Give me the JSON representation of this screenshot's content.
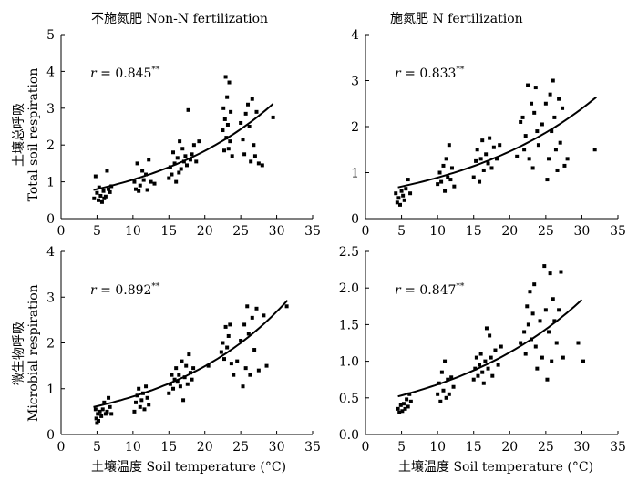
{
  "figure": {
    "col_titles": [
      "不施氮肥 Non-N fertilization",
      "施氮肥 N fertilization"
    ],
    "row_titles": [
      {
        "cn": "土壤总呼吸",
        "en": "Total soil respiration"
      },
      {
        "cn": "微生物呼吸",
        "en": "Microbial respiration"
      }
    ],
    "xlabel": "土壤温度 Soil temperature (°C)"
  },
  "chart_data": [
    {
      "type": "scatter",
      "title": "不施氮肥 Non-N fertilization",
      "annotation": {
        "r": "0.845",
        "sig": "**"
      },
      "xlim": [
        0,
        35
      ],
      "ylim": [
        0,
        5
      ],
      "xticks": [
        0,
        5,
        10,
        15,
        20,
        25,
        30,
        35
      ],
      "yticks": [
        0,
        1,
        2,
        3,
        4,
        5
      ],
      "points": [
        [
          4.6,
          0.55
        ],
        [
          4.8,
          1.15
        ],
        [
          5.0,
          0.7
        ],
        [
          5.2,
          0.5
        ],
        [
          5.3,
          0.85
        ],
        [
          5.5,
          0.62
        ],
        [
          5.7,
          0.45
        ],
        [
          5.9,
          0.75
        ],
        [
          6.0,
          0.55
        ],
        [
          6.2,
          0.6
        ],
        [
          6.4,
          1.3
        ],
        [
          6.6,
          0.8
        ],
        [
          6.8,
          0.72
        ],
        [
          7.0,
          0.88
        ],
        [
          10.2,
          1.0
        ],
        [
          10.4,
          0.8
        ],
        [
          10.6,
          1.5
        ],
        [
          10.8,
          0.75
        ],
        [
          11.0,
          0.9
        ],
        [
          11.3,
          1.3
        ],
        [
          11.5,
          1.05
        ],
        [
          11.8,
          1.2
        ],
        [
          12.0,
          0.78
        ],
        [
          12.2,
          1.6
        ],
        [
          12.5,
          1.0
        ],
        [
          13.0,
          0.95
        ],
        [
          15.0,
          1.1
        ],
        [
          15.2,
          1.4
        ],
        [
          15.4,
          1.2
        ],
        [
          15.6,
          1.8
        ],
        [
          15.8,
          1.5
        ],
        [
          16.0,
          1.0
        ],
        [
          16.2,
          1.65
        ],
        [
          16.4,
          1.25
        ],
        [
          16.5,
          2.1
        ],
        [
          16.7,
          1.35
        ],
        [
          16.9,
          1.9
        ],
        [
          17.1,
          1.55
        ],
        [
          17.3,
          1.7
        ],
        [
          17.5,
          1.45
        ],
        [
          17.7,
          2.95
        ],
        [
          18.0,
          1.6
        ],
        [
          18.2,
          1.75
        ],
        [
          18.5,
          2.0
        ],
        [
          18.8,
          1.55
        ],
        [
          19.2,
          2.1
        ],
        [
          22.5,
          2.4
        ],
        [
          22.6,
          3.0
        ],
        [
          22.7,
          1.85
        ],
        [
          22.8,
          2.7
        ],
        [
          22.9,
          3.85
        ],
        [
          23.0,
          2.2
        ],
        [
          23.1,
          3.3
        ],
        [
          23.2,
          2.55
        ],
        [
          23.3,
          1.9
        ],
        [
          23.4,
          3.7
        ],
        [
          23.5,
          2.1
        ],
        [
          23.6,
          2.9
        ],
        [
          23.8,
          1.7
        ],
        [
          25.0,
          2.6
        ],
        [
          25.3,
          2.15
        ],
        [
          25.5,
          1.75
        ],
        [
          25.7,
          2.85
        ],
        [
          26.0,
          3.1
        ],
        [
          26.2,
          2.5
        ],
        [
          26.4,
          1.55
        ],
        [
          26.6,
          3.25
        ],
        [
          26.8,
          2.0
        ],
        [
          27.0,
          1.7
        ],
        [
          27.2,
          2.9
        ],
        [
          27.5,
          1.5
        ],
        [
          28.0,
          1.45
        ],
        [
          29.5,
          2.75
        ]
      ],
      "fit_curve": {
        "x": [
          4.5,
          29.5
        ],
        "y_start": 0.78,
        "y_end": 3.12
      }
    },
    {
      "type": "scatter",
      "title": "施氮肥 N fertilization",
      "annotation": {
        "r": "0.833",
        "sig": "**"
      },
      "xlim": [
        0,
        35
      ],
      "ylim": [
        0,
        4
      ],
      "xticks": [
        0,
        5,
        10,
        15,
        20,
        25,
        30,
        35
      ],
      "yticks": [
        0,
        1,
        2,
        3,
        4
      ],
      "points": [
        [
          4.2,
          0.55
        ],
        [
          4.4,
          0.35
        ],
        [
          4.6,
          0.45
        ],
        [
          4.8,
          0.3
        ],
        [
          5.0,
          0.6
        ],
        [
          5.2,
          0.5
        ],
        [
          5.4,
          0.4
        ],
        [
          5.6,
          0.65
        ],
        [
          5.9,
          0.85
        ],
        [
          6.2,
          0.55
        ],
        [
          10.0,
          0.75
        ],
        [
          10.3,
          1.0
        ],
        [
          10.5,
          0.8
        ],
        [
          10.8,
          1.15
        ],
        [
          11.0,
          0.6
        ],
        [
          11.2,
          1.3
        ],
        [
          11.4,
          0.9
        ],
        [
          11.6,
          1.6
        ],
        [
          11.8,
          0.85
        ],
        [
          12.0,
          1.1
        ],
        [
          12.3,
          0.7
        ],
        [
          15.0,
          0.9
        ],
        [
          15.3,
          1.25
        ],
        [
          15.5,
          1.5
        ],
        [
          15.8,
          0.8
        ],
        [
          16.0,
          1.3
        ],
        [
          16.2,
          1.7
        ],
        [
          16.4,
          1.05
        ],
        [
          16.7,
          1.4
        ],
        [
          17.0,
          1.2
        ],
        [
          17.2,
          1.75
        ],
        [
          17.5,
          1.1
        ],
        [
          17.8,
          1.55
        ],
        [
          18.2,
          1.3
        ],
        [
          18.6,
          1.6
        ],
        [
          21.0,
          1.35
        ],
        [
          21.5,
          2.1
        ],
        [
          21.8,
          2.2
        ],
        [
          22.0,
          1.5
        ],
        [
          22.2,
          1.8
        ],
        [
          22.5,
          2.9
        ],
        [
          22.7,
          1.3
        ],
        [
          23.0,
          2.5
        ],
        [
          23.2,
          1.1
        ],
        [
          23.4,
          2.3
        ],
        [
          23.6,
          2.85
        ],
        [
          23.8,
          1.9
        ],
        [
          24.0,
          1.6
        ],
        [
          24.5,
          2.05
        ],
        [
          25.0,
          2.5
        ],
        [
          25.2,
          0.85
        ],
        [
          25.4,
          1.3
        ],
        [
          25.6,
          2.7
        ],
        [
          25.8,
          1.9
        ],
        [
          26.0,
          3.0
        ],
        [
          26.2,
          2.2
        ],
        [
          26.4,
          1.5
        ],
        [
          26.6,
          1.05
        ],
        [
          26.8,
          2.6
        ],
        [
          27.0,
          1.65
        ],
        [
          27.3,
          2.4
        ],
        [
          27.6,
          1.15
        ],
        [
          28.0,
          1.3
        ],
        [
          31.8,
          1.5
        ]
      ],
      "fit_curve": {
        "x": [
          4.5,
          32
        ],
        "y_start": 0.68,
        "y_end": 2.64
      }
    },
    {
      "type": "scatter",
      "annotation": {
        "r": "0.892",
        "sig": "**"
      },
      "xlim": [
        0,
        35
      ],
      "ylim": [
        0,
        4
      ],
      "xticks": [
        0,
        5,
        10,
        15,
        20,
        25,
        30,
        35
      ],
      "yticks": [
        0,
        1,
        2,
        3,
        4
      ],
      "points": [
        [
          4.8,
          0.55
        ],
        [
          4.9,
          0.35
        ],
        [
          5.0,
          0.25
        ],
        [
          5.1,
          0.45
        ],
        [
          5.2,
          0.3
        ],
        [
          5.4,
          0.5
        ],
        [
          5.6,
          0.4
        ],
        [
          5.8,
          0.55
        ],
        [
          6.0,
          0.7
        ],
        [
          6.2,
          0.45
        ],
        [
          6.4,
          0.5
        ],
        [
          6.6,
          0.8
        ],
        [
          6.8,
          0.6
        ],
        [
          7.0,
          0.45
        ],
        [
          10.2,
          0.5
        ],
        [
          10.4,
          0.7
        ],
        [
          10.6,
          0.85
        ],
        [
          10.8,
          1.0
        ],
        [
          11.0,
          0.6
        ],
        [
          11.2,
          0.75
        ],
        [
          11.4,
          0.9
        ],
        [
          11.6,
          0.55
        ],
        [
          11.8,
          1.05
        ],
        [
          12.0,
          0.8
        ],
        [
          12.2,
          0.65
        ],
        [
          15.0,
          0.9
        ],
        [
          15.2,
          1.1
        ],
        [
          15.4,
          1.3
        ],
        [
          15.6,
          1.0
        ],
        [
          15.8,
          1.2
        ],
        [
          16.0,
          1.45
        ],
        [
          16.2,
          1.15
        ],
        [
          16.4,
          1.3
        ],
        [
          16.6,
          1.05
        ],
        [
          16.8,
          1.6
        ],
        [
          17.0,
          0.75
        ],
        [
          17.2,
          1.25
        ],
        [
          17.4,
          1.5
        ],
        [
          17.6,
          1.1
        ],
        [
          17.8,
          1.75
        ],
        [
          18.0,
          1.35
        ],
        [
          18.2,
          1.2
        ],
        [
          18.4,
          1.45
        ],
        [
          20.5,
          1.5
        ],
        [
          22.3,
          1.8
        ],
        [
          22.5,
          2.0
        ],
        [
          22.7,
          1.65
        ],
        [
          22.9,
          2.35
        ],
        [
          23.1,
          1.9
        ],
        [
          23.3,
          2.15
        ],
        [
          23.5,
          2.4
        ],
        [
          23.7,
          1.55
        ],
        [
          24.0,
          1.3
        ],
        [
          24.5,
          1.6
        ],
        [
          25.0,
          2.05
        ],
        [
          25.3,
          1.05
        ],
        [
          25.5,
          2.4
        ],
        [
          25.7,
          1.45
        ],
        [
          25.9,
          2.8
        ],
        [
          26.1,
          2.2
        ],
        [
          26.3,
          1.3
        ],
        [
          26.6,
          2.55
        ],
        [
          26.9,
          1.85
        ],
        [
          27.2,
          2.75
        ],
        [
          27.5,
          1.4
        ],
        [
          28.2,
          2.6
        ],
        [
          28.6,
          1.5
        ],
        [
          31.4,
          2.8
        ]
      ],
      "fit_curve": {
        "x": [
          4.5,
          31.5
        ],
        "y_start": 0.6,
        "y_end": 2.93
      }
    },
    {
      "type": "scatter",
      "annotation": {
        "r": "0.847",
        "sig": "**"
      },
      "xlim": [
        0,
        35
      ],
      "ylim": [
        0,
        2.5
      ],
      "xticks": [
        0,
        5,
        10,
        15,
        20,
        25,
        30,
        35
      ],
      "yticks": [
        0,
        0.5,
        1.0,
        1.5,
        2.0,
        2.5
      ],
      "points": [
        [
          4.5,
          0.35
        ],
        [
          4.7,
          0.3
        ],
        [
          4.9,
          0.4
        ],
        [
          5.1,
          0.32
        ],
        [
          5.3,
          0.42
        ],
        [
          5.5,
          0.35
        ],
        [
          5.7,
          0.48
        ],
        [
          5.9,
          0.38
        ],
        [
          6.1,
          0.55
        ],
        [
          6.3,
          0.45
        ],
        [
          10.0,
          0.55
        ],
        [
          10.2,
          0.7
        ],
        [
          10.4,
          0.45
        ],
        [
          10.6,
          0.85
        ],
        [
          10.8,
          0.6
        ],
        [
          11.0,
          1.0
        ],
        [
          11.2,
          0.5
        ],
        [
          11.4,
          0.75
        ],
        [
          11.6,
          0.55
        ],
        [
          11.9,
          0.78
        ],
        [
          12.2,
          0.65
        ],
        [
          15.0,
          0.75
        ],
        [
          15.2,
          0.9
        ],
        [
          15.4,
          1.05
        ],
        [
          15.6,
          0.8
        ],
        [
          15.8,
          0.95
        ],
        [
          16.0,
          1.1
        ],
        [
          16.2,
          0.85
        ],
        [
          16.4,
          0.7
        ],
        [
          16.6,
          1.0
        ],
        [
          16.8,
          1.45
        ],
        [
          17.0,
          0.9
        ],
        [
          17.2,
          1.35
        ],
        [
          17.4,
          1.05
        ],
        [
          17.6,
          0.8
        ],
        [
          18.0,
          1.15
        ],
        [
          18.4,
          0.95
        ],
        [
          18.8,
          1.2
        ],
        [
          21.5,
          1.25
        ],
        [
          22.0,
          1.4
        ],
        [
          22.2,
          1.1
        ],
        [
          22.4,
          1.75
        ],
        [
          22.6,
          1.5
        ],
        [
          22.8,
          1.95
        ],
        [
          23.0,
          1.3
        ],
        [
          23.2,
          1.65
        ],
        [
          23.4,
          2.05
        ],
        [
          23.6,
          1.2
        ],
        [
          23.8,
          0.9
        ],
        [
          24.2,
          1.55
        ],
        [
          24.5,
          1.05
        ],
        [
          24.8,
          2.3
        ],
        [
          25.0,
          1.7
        ],
        [
          25.2,
          0.75
        ],
        [
          25.4,
          1.4
        ],
        [
          25.6,
          2.2
        ],
        [
          25.8,
          1.0
        ],
        [
          26.0,
          1.85
        ],
        [
          26.2,
          1.55
        ],
        [
          26.5,
          1.25
        ],
        [
          26.8,
          1.7
        ],
        [
          27.1,
          2.22
        ],
        [
          27.4,
          1.05
        ],
        [
          29.5,
          1.25
        ],
        [
          30.2,
          1.0
        ]
      ],
      "fit_curve": {
        "x": [
          4.5,
          30
        ],
        "y_start": 0.52,
        "y_end": 1.84
      }
    }
  ]
}
